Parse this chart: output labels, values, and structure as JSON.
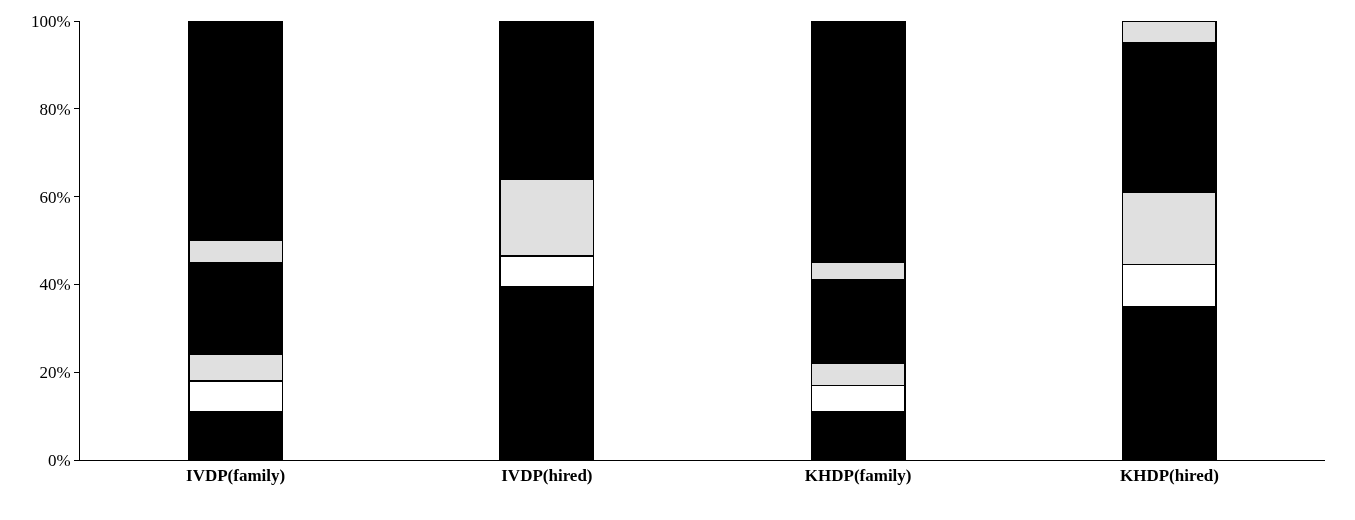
{
  "chart_data": {
    "type": "bar",
    "stacked": true,
    "categories": [
      "IVDP(family)",
      "IVDP(hired)",
      "KHDP(family)",
      "KHDP(hired)"
    ],
    "series": [
      {
        "color": "#000000",
        "values": [
          11,
          39.5,
          11,
          35
        ]
      },
      {
        "color": "#ffffff",
        "values": [
          7,
          7,
          6,
          9.5
        ]
      },
      {
        "color": "#e0e0e0",
        "values": [
          6,
          17.5,
          5,
          16.5
        ]
      },
      {
        "color": "#000000",
        "values": [
          21,
          0,
          19,
          34
        ]
      },
      {
        "color": "#e0e0e0",
        "values": [
          5,
          0,
          4,
          5
        ]
      },
      {
        "color": "#000000",
        "values": [
          50,
          36,
          55,
          0
        ]
      }
    ],
    "ylim": [
      0,
      100
    ],
    "yticks": [
      {
        "value": 0,
        "label": "0%"
      },
      {
        "value": 20,
        "label": "20%"
      },
      {
        "value": 40,
        "label": "40%"
      },
      {
        "value": 60,
        "label": "60%"
      },
      {
        "value": 80,
        "label": "80%"
      },
      {
        "value": 100,
        "label": "100%"
      }
    ]
  }
}
